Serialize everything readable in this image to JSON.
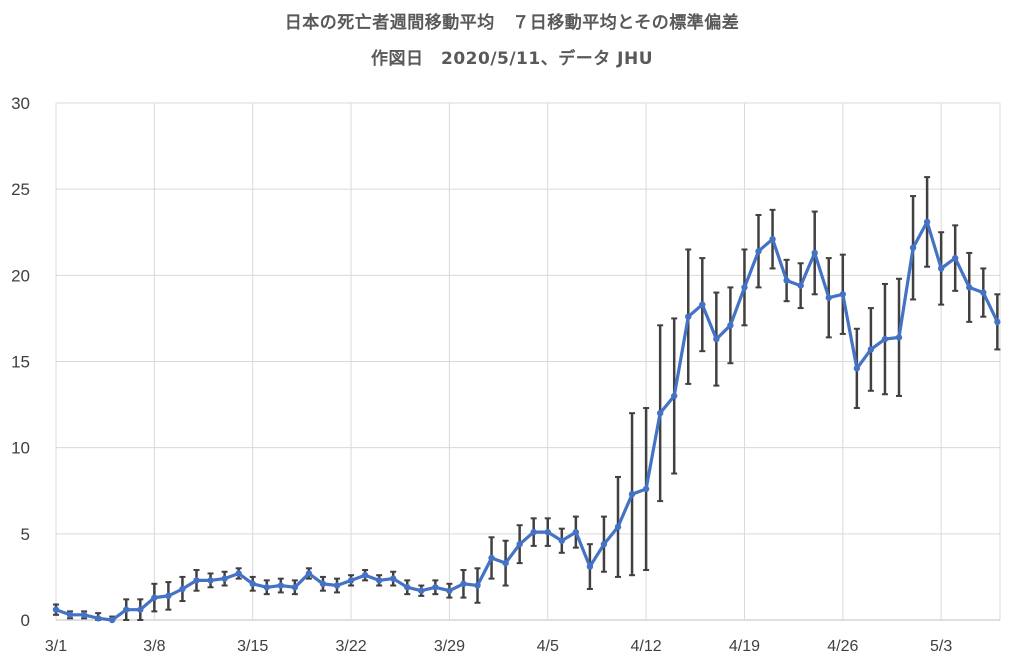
{
  "chart_data": {
    "type": "line",
    "title": "日本の死亡者週間移動平均　７日移動平均とその標準偏差",
    "subtitle": "作図日　2020/5/11、データ JHU",
    "xlabel": "",
    "ylabel": "",
    "ylim": [
      0,
      30
    ],
    "yticks": [
      0,
      5,
      10,
      15,
      20,
      25,
      30
    ],
    "xticks": [
      {
        "label": "3/1",
        "index": 0
      },
      {
        "label": "3/8",
        "index": 7
      },
      {
        "label": "3/15",
        "index": 14
      },
      {
        "label": "3/22",
        "index": 21
      },
      {
        "label": "3/29",
        "index": 28
      },
      {
        "label": "4/5",
        "index": 35
      },
      {
        "label": "4/12",
        "index": 42
      },
      {
        "label": "4/19",
        "index": 49
      },
      {
        "label": "4/26",
        "index": 56
      },
      {
        "label": "5/3",
        "index": 63
      }
    ],
    "grid": true,
    "line_color": "#4472C4",
    "errorbar_color": "#404040",
    "series": [
      {
        "values": [
          0.6,
          0.3,
          0.3,
          0.1,
          0.0,
          0.6,
          0.6,
          1.3,
          1.4,
          1.8,
          2.3,
          2.3,
          2.4,
          2.7,
          2.1,
          1.9,
          2.0,
          1.9,
          2.7,
          2.1,
          2.0,
          2.3,
          2.6,
          2.3,
          2.4,
          1.9,
          1.7,
          1.9,
          1.7,
          2.1,
          2.0,
          3.6,
          3.3,
          4.4,
          5.1,
          5.1,
          4.6,
          5.1,
          3.1,
          4.4,
          5.4,
          7.3,
          7.6,
          12.0,
          13.0,
          17.6,
          18.3,
          16.3,
          17.1,
          19.3,
          21.4,
          22.1,
          19.7,
          19.4,
          21.3,
          18.7,
          18.9,
          14.6,
          15.7,
          16.3,
          16.4,
          21.6,
          23.1,
          20.4,
          21.0,
          19.3,
          19.0,
          17.3
        ],
        "errors": [
          0.3,
          0.2,
          0.2,
          0.3,
          0.2,
          0.6,
          0.6,
          0.8,
          0.8,
          0.7,
          0.6,
          0.4,
          0.4,
          0.3,
          0.4,
          0.4,
          0.4,
          0.4,
          0.3,
          0.4,
          0.4,
          0.3,
          0.3,
          0.3,
          0.4,
          0.4,
          0.3,
          0.4,
          0.4,
          0.8,
          1.0,
          1.2,
          1.3,
          1.1,
          0.8,
          0.8,
          0.7,
          0.9,
          1.3,
          1.6,
          2.9,
          4.7,
          4.7,
          5.1,
          4.5,
          3.9,
          2.7,
          2.7,
          2.2,
          2.2,
          2.1,
          1.7,
          1.2,
          1.3,
          2.4,
          2.3,
          2.3,
          2.3,
          2.4,
          3.2,
          3.4,
          3.0,
          2.6,
          2.1,
          1.9,
          2.0,
          1.4,
          1.6
        ]
      }
    ]
  }
}
